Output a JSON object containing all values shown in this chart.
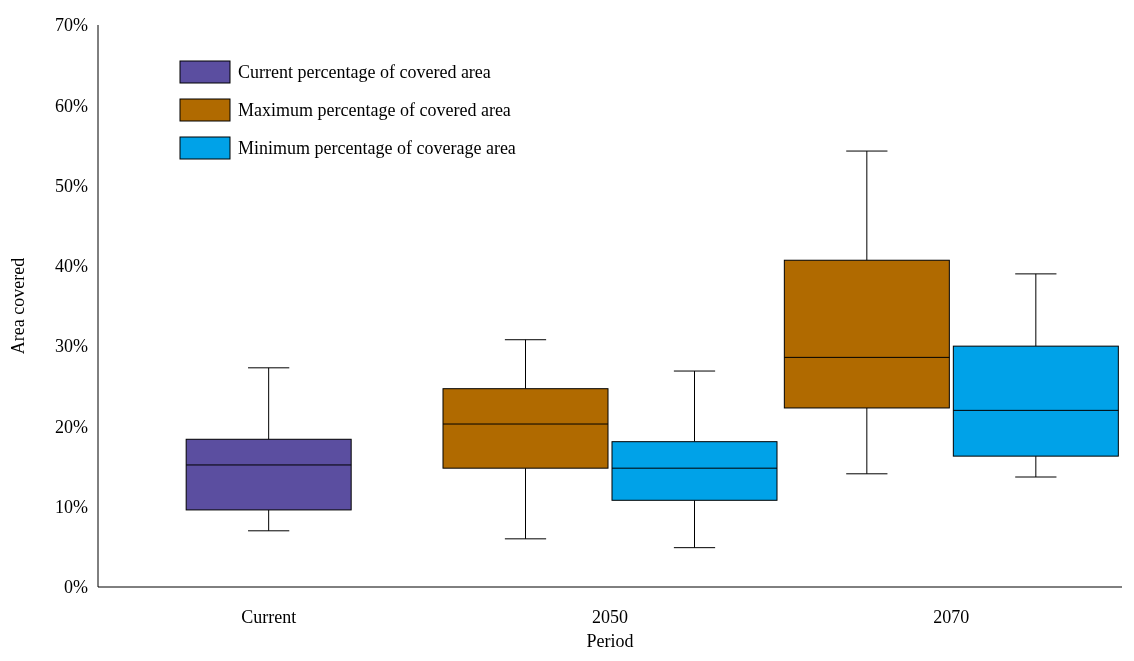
{
  "chart_data": {
    "type": "box",
    "xlabel": "Period",
    "ylabel": "Area covered",
    "categories": [
      "Current",
      "2050",
      "2070"
    ],
    "ylim": [
      0,
      70
    ],
    "yticks": [
      {
        "value": 0,
        "label": "0%"
      },
      {
        "value": 10,
        "label": "10%"
      },
      {
        "value": 20,
        "label": "20%"
      },
      {
        "value": 30,
        "label": "30%"
      },
      {
        "value": 40,
        "label": "40%"
      },
      {
        "value": 50,
        "label": "50%"
      },
      {
        "value": 60,
        "label": "60%"
      },
      {
        "value": 70,
        "label": "70%"
      }
    ],
    "legend": "top left",
    "grid": false,
    "series": [
      {
        "name": "Current percentage of covered area",
        "color": "#5b4ea0",
        "boxes": [
          {
            "low": 7.0,
            "q1": 9.6,
            "median": 15.2,
            "q3": 18.4,
            "high": 27.3
          },
          null,
          null
        ]
      },
      {
        "name": "Maximum percentage of covered area",
        "color": "#b06a00",
        "boxes": [
          null,
          {
            "low": 6.0,
            "q1": 14.8,
            "median": 20.3,
            "q3": 24.7,
            "high": 30.8
          },
          {
            "low": 14.1,
            "q1": 22.3,
            "median": 28.6,
            "q3": 40.7,
            "high": 54.3
          }
        ]
      },
      {
        "name": "Minimum percentage of coverage area",
        "color": "#00a2e8",
        "boxes": [
          null,
          {
            "low": 4.9,
            "q1": 10.8,
            "median": 14.8,
            "q3": 18.1,
            "high": 26.9
          },
          {
            "low": 13.7,
            "q1": 16.3,
            "median": 22.0,
            "q3": 30.0,
            "high": 39.0
          }
        ]
      }
    ]
  }
}
